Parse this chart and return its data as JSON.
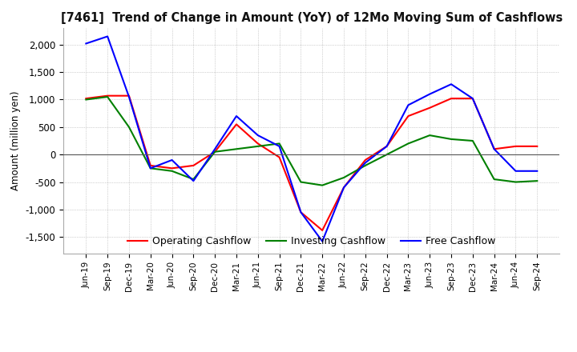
{
  "title": "[7461]  Trend of Change in Amount (YoY) of 12Mo Moving Sum of Cashflows",
  "ylabel": "Amount (million yen)",
  "x_labels": [
    "Jun-19",
    "Sep-19",
    "Dec-19",
    "Mar-20",
    "Jun-20",
    "Sep-20",
    "Dec-20",
    "Mar-21",
    "Jun-21",
    "Sep-21",
    "Dec-21",
    "Mar-22",
    "Jun-22",
    "Sep-22",
    "Dec-22",
    "Mar-23",
    "Jun-23",
    "Sep-23",
    "Dec-23",
    "Mar-24",
    "Jun-24",
    "Sep-24"
  ],
  "operating": [
    1020,
    1070,
    1070,
    -200,
    -250,
    -200,
    50,
    550,
    200,
    -50,
    -1050,
    -1380,
    -600,
    -100,
    150,
    700,
    850,
    1020,
    1020,
    100,
    150,
    150
  ],
  "investing": [
    1000,
    1050,
    500,
    -250,
    -300,
    -450,
    50,
    100,
    150,
    200,
    -500,
    -560,
    -420,
    -200,
    0,
    200,
    350,
    280,
    250,
    -450,
    -500,
    -480
  ],
  "free": [
    2020,
    2150,
    1050,
    -250,
    -100,
    -480,
    100,
    700,
    350,
    150,
    -1050,
    -1580,
    -600,
    -150,
    150,
    900,
    1100,
    1280,
    1020,
    100,
    -300,
    -300
  ],
  "operating_color": "#ff0000",
  "investing_color": "#008000",
  "free_color": "#0000ff",
  "ylim": [
    -1800,
    2300
  ],
  "yticks": [
    -1500,
    -1000,
    -500,
    0,
    500,
    1000,
    1500,
    2000
  ],
  "bg_color": "#ffffff",
  "grid_color": "#aaaaaa"
}
